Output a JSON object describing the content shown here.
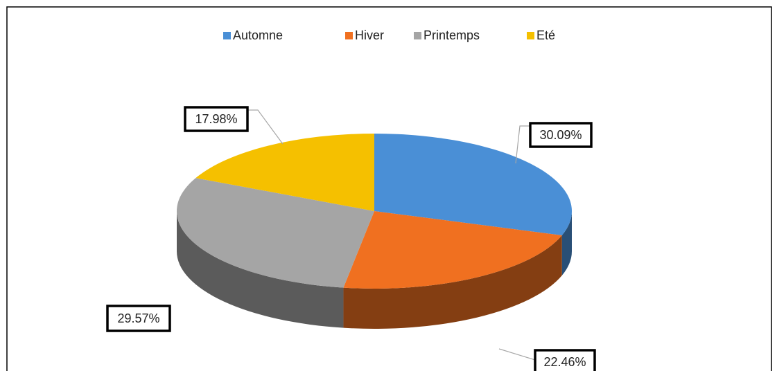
{
  "chart_data": {
    "type": "pie3d",
    "categories": [
      "Automne",
      "Hiver",
      "Printemps",
      "Eté"
    ],
    "values": [
      30.09,
      22.46,
      29.57,
      17.98
    ],
    "value_labels": [
      "30.09%",
      "22.46%",
      "29.57%",
      "17.98%"
    ],
    "colors": [
      "#4a8fd6",
      "#f07020",
      "#a5a5a5",
      "#f5c000"
    ],
    "legend": "top"
  }
}
